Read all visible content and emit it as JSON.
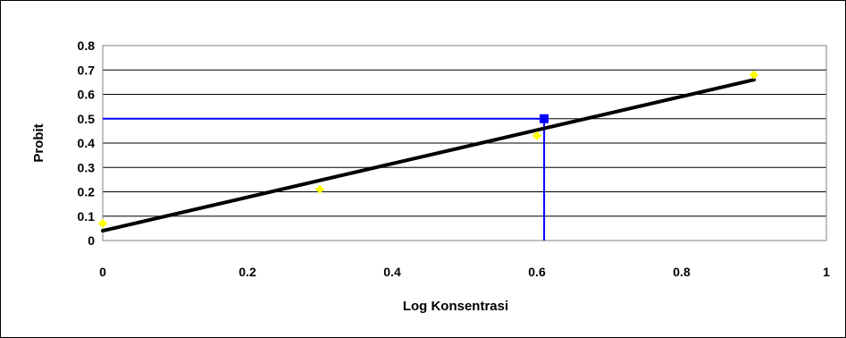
{
  "chart_data": {
    "type": "scatter",
    "xlabel": "Log Konsentrasi",
    "ylabel": "Probit",
    "xlim": [
      0,
      1
    ],
    "ylim": [
      0,
      0.8
    ],
    "x_ticks": [
      "0",
      "0.2",
      "0.4",
      "0.6",
      "0.8",
      "1"
    ],
    "y_ticks": [
      "0",
      "0.1",
      "0.2",
      "0.3",
      "0.4",
      "0.5",
      "0.6",
      "0.7",
      "0.8"
    ],
    "grid": "horizontal",
    "series": [
      {
        "kind": "points",
        "color": "#ffff00",
        "x": [
          0,
          0.3,
          0.6,
          0.9
        ],
        "y": [
          0.07,
          0.21,
          0.43,
          0.68
        ]
      },
      {
        "kind": "line",
        "color": "#000000",
        "x": [
          0,
          0.9
        ],
        "y": [
          0.04,
          0.66
        ]
      },
      {
        "kind": "marker",
        "color": "#0000ff",
        "x": 0.61,
        "y": 0.5
      }
    ],
    "guide_color": "#0000ff"
  }
}
